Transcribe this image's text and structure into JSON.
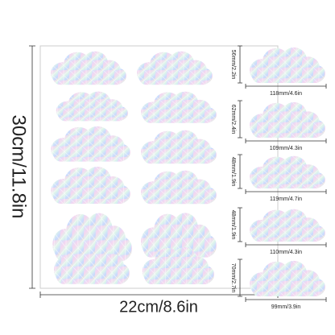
{
  "sheet": {
    "height": "30cm/11.8in",
    "width": "22cm/8.6in"
  },
  "stickers": [
    {
      "height": "56mm/2.2in",
      "width": "118mm/4.6in"
    },
    {
      "height": "62mm/2.4in",
      "width": "109mm/4.3in"
    },
    {
      "height": "48mm/1.9in",
      "width": "119mm/4.7in"
    },
    {
      "height": "48mm/1.9in",
      "width": "110mm/4.3in"
    },
    {
      "height": "70mm/2.7in",
      "width": "99mm/3.9in"
    }
  ]
}
